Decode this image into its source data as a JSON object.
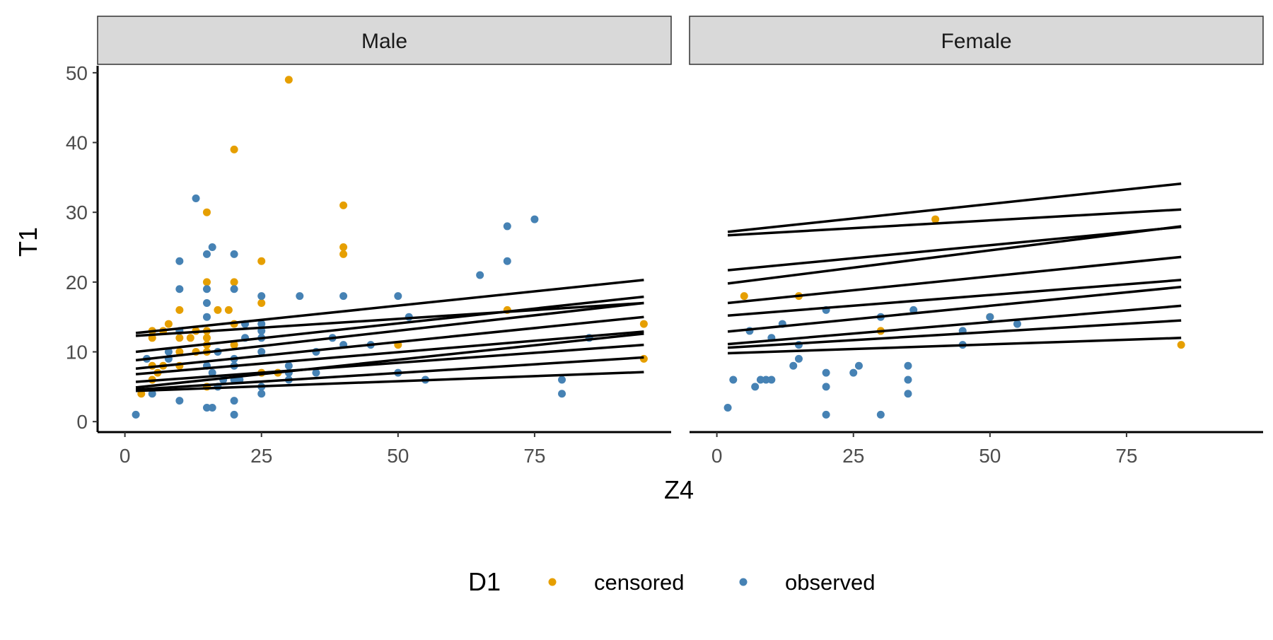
{
  "chart_data": {
    "type": "scatter",
    "xlabel": "Z4",
    "ylabel": "T1",
    "xlim": [
      -5,
      100
    ],
    "ylim": [
      -1.5,
      51
    ],
    "x_ticks": [
      0,
      25,
      50,
      75
    ],
    "y_ticks": [
      0,
      10,
      20,
      30,
      40,
      50
    ],
    "grid": false,
    "legend": {
      "title": "D1",
      "position": "bottom",
      "entries": [
        {
          "key": "censored",
          "label": "censored",
          "color": "#E69F00"
        },
        {
          "key": "observed",
          "label": "observed",
          "color": "#4682B4"
        }
      ]
    },
    "line_color": "#000000",
    "panels": [
      {
        "title": "Male",
        "points": {
          "censored": [
            [
              3,
              4
            ],
            [
              5,
              6
            ],
            [
              5,
              8
            ],
            [
              5,
              12
            ],
            [
              5,
              13
            ],
            [
              6,
              7
            ],
            [
              7,
              8
            ],
            [
              7,
              13
            ],
            [
              8,
              14
            ],
            [
              10,
              8
            ],
            [
              10,
              10
            ],
            [
              10,
              12
            ],
            [
              10,
              16
            ],
            [
              12,
              12
            ],
            [
              13,
              10
            ],
            [
              13,
              13
            ],
            [
              15,
              5
            ],
            [
              15,
              10
            ],
            [
              15,
              11
            ],
            [
              15,
              12
            ],
            [
              15,
              13
            ],
            [
              15,
              20
            ],
            [
              15,
              30
            ],
            [
              17,
              16
            ],
            [
              19,
              16
            ],
            [
              20,
              11
            ],
            [
              20,
              14
            ],
            [
              20,
              20
            ],
            [
              20,
              39
            ],
            [
              25,
              7
            ],
            [
              25,
              17
            ],
            [
              25,
              23
            ],
            [
              28,
              7
            ],
            [
              30,
              49
            ],
            [
              40,
              24
            ],
            [
              40,
              25
            ],
            [
              40,
              31
            ],
            [
              50,
              11
            ],
            [
              70,
              16
            ],
            [
              95,
              9
            ],
            [
              95,
              14
            ]
          ],
          "observed": [
            [
              2,
              1
            ],
            [
              4,
              9
            ],
            [
              5,
              4
            ],
            [
              8,
              9
            ],
            [
              8,
              10
            ],
            [
              10,
              3
            ],
            [
              10,
              13
            ],
            [
              10,
              19
            ],
            [
              10,
              23
            ],
            [
              13,
              32
            ],
            [
              15,
              2
            ],
            [
              15,
              8
            ],
            [
              15,
              15
            ],
            [
              15,
              17
            ],
            [
              15,
              19
            ],
            [
              15,
              24
            ],
            [
              16,
              2
            ],
            [
              16,
              7
            ],
            [
              16,
              25
            ],
            [
              17,
              5
            ],
            [
              17,
              10
            ],
            [
              18,
              6
            ],
            [
              20,
              1
            ],
            [
              20,
              3
            ],
            [
              20,
              6
            ],
            [
              20,
              8
            ],
            [
              20,
              9
            ],
            [
              20,
              19
            ],
            [
              20,
              24
            ],
            [
              21,
              6
            ],
            [
              22,
              12
            ],
            [
              22,
              14
            ],
            [
              25,
              4
            ],
            [
              25,
              5
            ],
            [
              25,
              10
            ],
            [
              25,
              12
            ],
            [
              25,
              13
            ],
            [
              25,
              14
            ],
            [
              25,
              18
            ],
            [
              30,
              6
            ],
            [
              30,
              7
            ],
            [
              30,
              8
            ],
            [
              32,
              18
            ],
            [
              35,
              7
            ],
            [
              35,
              10
            ],
            [
              38,
              12
            ],
            [
              40,
              11
            ],
            [
              40,
              18
            ],
            [
              45,
              11
            ],
            [
              50,
              7
            ],
            [
              50,
              18
            ],
            [
              52,
              15
            ],
            [
              55,
              6
            ],
            [
              65,
              21
            ],
            [
              70,
              23
            ],
            [
              70,
              28
            ],
            [
              75,
              29
            ],
            [
              80,
              4
            ],
            [
              80,
              6
            ],
            [
              85,
              12
            ]
          ]
        },
        "lines": [
          {
            "x": [
              2,
              95
            ],
            "y": [
              12.7,
              20.3
            ]
          },
          {
            "x": [
              2,
              95
            ],
            "y": [
              12.3,
              17.0
            ]
          },
          {
            "x": [
              2,
              95
            ],
            "y": [
              10.0,
              17.9
            ]
          },
          {
            "x": [
              2,
              95
            ],
            "y": [
              8.8,
              17.0
            ]
          },
          {
            "x": [
              2,
              95
            ],
            "y": [
              7.6,
              15.0
            ]
          },
          {
            "x": [
              2,
              95
            ],
            "y": [
              6.8,
              12.9
            ]
          },
          {
            "x": [
              2,
              95
            ],
            "y": [
              5.7,
              11.0
            ]
          },
          {
            "x": [
              2,
              95
            ],
            "y": [
              4.9,
              12.6
            ]
          },
          {
            "x": [
              2,
              95
            ],
            "y": [
              4.6,
              9.2
            ]
          },
          {
            "x": [
              2,
              95
            ],
            "y": [
              4.4,
              7.1
            ]
          }
        ]
      },
      {
        "title": "Female",
        "points": {
          "censored": [
            [
              5,
              18
            ],
            [
              15,
              18
            ],
            [
              30,
              13
            ],
            [
              40,
              29
            ],
            [
              50,
              15
            ],
            [
              85,
              11
            ]
          ],
          "observed": [
            [
              2,
              2
            ],
            [
              3,
              6
            ],
            [
              6,
              13
            ],
            [
              7,
              5
            ],
            [
              8,
              6
            ],
            [
              9,
              6
            ],
            [
              10,
              6
            ],
            [
              10,
              12
            ],
            [
              12,
              14
            ],
            [
              14,
              8
            ],
            [
              15,
              9
            ],
            [
              15,
              11
            ],
            [
              20,
              1
            ],
            [
              20,
              5
            ],
            [
              20,
              7
            ],
            [
              20,
              16
            ],
            [
              25,
              7
            ],
            [
              26,
              8
            ],
            [
              30,
              1
            ],
            [
              30,
              15
            ],
            [
              35,
              4
            ],
            [
              35,
              6
            ],
            [
              35,
              8
            ],
            [
              36,
              16
            ],
            [
              45,
              11
            ],
            [
              45,
              13
            ],
            [
              50,
              15
            ],
            [
              55,
              14
            ]
          ]
        },
        "lines": [
          {
            "x": [
              2,
              85
            ],
            "y": [
              27.2,
              34.1
            ]
          },
          {
            "x": [
              2,
              85
            ],
            "y": [
              26.7,
              30.4
            ]
          },
          {
            "x": [
              2,
              85
            ],
            "y": [
              21.7,
              27.9
            ]
          },
          {
            "x": [
              2,
              85
            ],
            "y": [
              19.8,
              28.0
            ]
          },
          {
            "x": [
              2,
              85
            ],
            "y": [
              17.0,
              23.6
            ]
          },
          {
            "x": [
              2,
              85
            ],
            "y": [
              15.2,
              20.3
            ]
          },
          {
            "x": [
              2,
              85
            ],
            "y": [
              12.9,
              19.3
            ]
          },
          {
            "x": [
              2,
              85
            ],
            "y": [
              11.1,
              16.6
            ]
          },
          {
            "x": [
              2,
              85
            ],
            "y": [
              10.6,
              14.5
            ]
          },
          {
            "x": [
              2,
              85
            ],
            "y": [
              9.8,
              12.0
            ]
          }
        ]
      }
    ]
  }
}
